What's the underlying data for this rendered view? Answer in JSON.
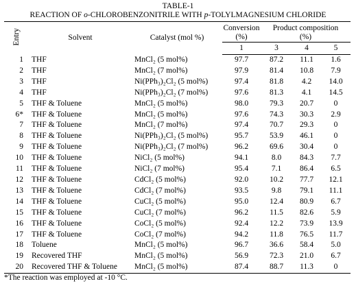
{
  "caption": {
    "label": "TABLE-1",
    "title": [
      "REACTION OF ",
      "o",
      "-CHLOROBENZONITRILE WITH ",
      "p",
      "-TOLYLMAGNESIUM CHLORIDE"
    ]
  },
  "table": {
    "headers": {
      "entry": "Entry",
      "solvent": "Solvent",
      "catalyst": "Catalyst (mol %)",
      "conversion": [
        "Conversion",
        "(%)"
      ],
      "product": [
        "Product composition",
        "(%)"
      ],
      "numbers": [
        "1",
        "3",
        "4",
        "5"
      ]
    },
    "rows": [
      [
        "1",
        "THF",
        "MnCl₂ (5 mol%)",
        "97.7",
        "87.2",
        "11.1",
        "1.6"
      ],
      [
        "2",
        "THF",
        "MnCl₂ (7 mol%)",
        "97.9",
        "81.4",
        "10.8",
        "7.9"
      ],
      [
        "3",
        "THF",
        "Ni(PPh₃)₂Cl₂ (5 mol%)",
        "97.4",
        "81.8",
        "4.2",
        "14.0"
      ],
      [
        "4",
        "THF",
        "Ni(PPh₃)₂Cl₂ (7 mol%)",
        "97.6",
        "81.3",
        "4.1",
        "14.5"
      ],
      [
        "5",
        "THF & Toluene",
        "MnCl₂ (5 mol%)",
        "98.0",
        "79.3",
        "20.7",
        "0"
      ],
      [
        "6*",
        "THF & Toluene",
        "MnCl₂ (5 mol%)",
        "97.6",
        "74.3",
        "30.3",
        "2.9"
      ],
      [
        "7",
        "THF & Toluene",
        "MnCl₂ (7 mol%)",
        "97.4",
        "70.7",
        "29.3",
        "0"
      ],
      [
        "8",
        "THF & Toluene",
        "Ni(PPh₃)₂Cl₂ (5 mol%)",
        "95.7",
        "53.9",
        "46.1",
        "0"
      ],
      [
        "9",
        "THF & Toluene",
        "Ni(PPh₃)₂Cl₂ (7 mol%)",
        "96.2",
        "69.6",
        "30.4",
        "0"
      ],
      [
        "10",
        "THF & Toluene",
        "NiCl₂ (5 mol%)",
        "94.1",
        "8.0",
        "84.3",
        "7.7"
      ],
      [
        "11",
        "THF & Toluene",
        "NiCl₂ (7 mol%)",
        "95.4",
        "7.1",
        "86.4",
        "6.5"
      ],
      [
        "12",
        "THF & Toluene",
        "CdCl₂ (5 mol%)",
        "92.0",
        "10.2",
        "77.7",
        "12.1"
      ],
      [
        "13",
        "THF & Toluene",
        "CdCl₂ (7 mol%)",
        "93.5",
        "9.8",
        "79.1",
        "11.1"
      ],
      [
        "14",
        "THF & Toluene",
        "CuCl₂ (5 mol%)",
        "95.0",
        "12.4",
        "80.9",
        "6.7"
      ],
      [
        "15",
        "THF & Toluene",
        "CuCl₂ (7 mol%)",
        "96.2",
        "11.5",
        "82.6",
        "5.9"
      ],
      [
        "16",
        "THF & Toluene",
        "CoCl₂ (5 mol%)",
        "92.4",
        "12.2",
        "73.9",
        "13.9"
      ],
      [
        "17",
        "THF & Toluene",
        "CoCl₂ (7 mol%)",
        "94.2",
        "11.8",
        "76.5",
        "11.7"
      ],
      [
        "18",
        "Toluene",
        "MnCl₂ (5 mol%)",
        "96.7",
        "36.6",
        "58.4",
        "5.0"
      ],
      [
        "19",
        "Recovered THF",
        "MnCl₂ (5 mol%)",
        "56.9",
        "72.3",
        "21.0",
        "6.7"
      ],
      [
        "20",
        "Recovered THF & Toluene",
        "MnCl₂ (5 mol%)",
        "87.4",
        "88.7",
        "11.3",
        "0"
      ]
    ]
  },
  "footnote": "*The reaction was employed at -10 °C."
}
